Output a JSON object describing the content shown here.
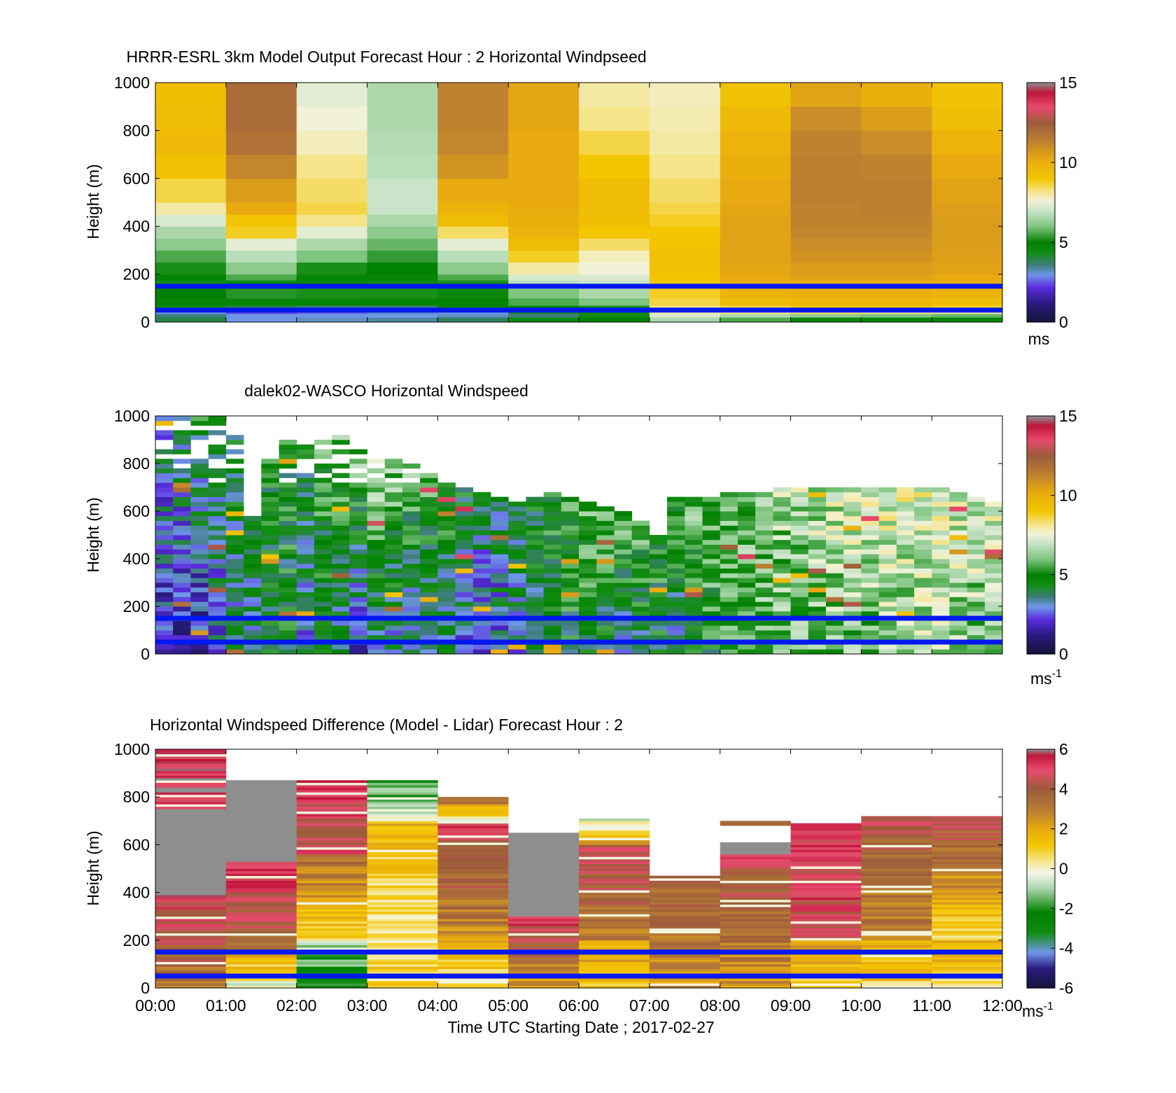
{
  "figure": {
    "xaxis_label": "Time UTC  Starting Date ; 2017-02-27",
    "time_ticks": [
      "00:00",
      "01:00",
      "02:00",
      "03:00",
      "04:00",
      "05:00",
      "06:00",
      "07:00",
      "08:00",
      "09:00",
      "10:00",
      "11:00",
      "12:00"
    ]
  },
  "colors": {
    "marker_line": "#0018f0",
    "speed_colormap": [
      [
        0,
        "#141438"
      ],
      [
        1.2,
        "#2a1a80"
      ],
      [
        2.2,
        "#5b2de0"
      ],
      [
        3.0,
        "#6f97e8"
      ],
      [
        3.6,
        "#3d7d7a"
      ],
      [
        4.4,
        "#118d11"
      ],
      [
        5.0,
        "#008000"
      ],
      [
        6.0,
        "#7fc47f"
      ],
      [
        7.0,
        "#c9e4c9"
      ],
      [
        7.6,
        "#f2f2d8"
      ],
      [
        8.2,
        "#f5e48a"
      ],
      [
        9.0,
        "#f3c600"
      ],
      [
        10.2,
        "#e8aa10"
      ],
      [
        11.5,
        "#b87b35"
      ],
      [
        12.5,
        "#9c5c3c"
      ],
      [
        13.5,
        "#e84a6c"
      ],
      [
        14.4,
        "#c0153a"
      ],
      [
        15,
        "#8e8e8e"
      ]
    ],
    "diff_colormap": [
      [
        -6,
        "#141438"
      ],
      [
        -5,
        "#2a1a80"
      ],
      [
        -4.2,
        "#6f97e8"
      ],
      [
        -3.2,
        "#118d11"
      ],
      [
        -2.2,
        "#008000"
      ],
      [
        -1,
        "#a9d5a9"
      ],
      [
        -0.2,
        "#f4f7ec"
      ],
      [
        0.4,
        "#f6e58a"
      ],
      [
        1.2,
        "#f3c600"
      ],
      [
        2,
        "#e8aa10"
      ],
      [
        3,
        "#b87b35"
      ],
      [
        4,
        "#9c5c3c"
      ],
      [
        5,
        "#e84a6c"
      ],
      [
        5.7,
        "#c0153a"
      ],
      [
        6,
        "#8e8e8e"
      ]
    ]
  },
  "chart_data": [
    {
      "type": "heatmap",
      "title": "HRRR-ESRL 3km Model Output   Forecast Hour : 2 Horizontal Windpseed",
      "xlabel": "",
      "ylabel": "Height (m)",
      "xlim": [
        0,
        12
      ],
      "ylim": [
        0,
        1000
      ],
      "yticks": [
        0,
        200,
        400,
        600,
        800,
        1000
      ],
      "colorbar": {
        "range": [
          0,
          15
        ],
        "ticks": [
          0,
          5,
          10,
          15
        ],
        "unit_label": "ms",
        "unit_exp": ""
      },
      "marker_heights_m": [
        150,
        50
      ],
      "grid": false,
      "heights_m": [
        0,
        20,
        35,
        50,
        70,
        100,
        140,
        175,
        200,
        250,
        300,
        350,
        400,
        450,
        500,
        600,
        700,
        800,
        900,
        1000
      ],
      "columns": [
        {
          "t": 0.5,
          "v": [
            4.0,
            3.6,
            3.0,
            4.5,
            4.8,
            5.0,
            4.4,
            4.9,
            5.2,
            5.6,
            6.2,
            6.6,
            7.2,
            8.0,
            8.6,
            9.2,
            9.5,
            9.4,
            9.3
          ]
        },
        {
          "t": 1.5,
          "v": [
            3.0,
            3.0,
            2.4,
            4.0,
            4.8,
            5.3,
            4.6,
            5.6,
            6.2,
            6.8,
            7.4,
            8.8,
            9.1,
            10.2,
            10.6,
            11.2,
            11.8,
            12.0,
            12.0
          ]
        },
        {
          "t": 2.5,
          "v": [
            3.2,
            3.0,
            2.6,
            3.6,
            4.8,
            5.2,
            4.6,
            4.8,
            5.2,
            6.0,
            6.6,
            7.4,
            8.2,
            8.6,
            8.4,
            8.2,
            7.8,
            7.6,
            7.4
          ]
        },
        {
          "t": 3.5,
          "v": [
            3.4,
            3.0,
            3.2,
            3.6,
            4.9,
            5.2,
            4.5,
            4.8,
            5.0,
            5.4,
            5.8,
            6.2,
            6.6,
            7.0,
            7.0,
            6.8,
            6.7,
            6.6,
            6.6
          ]
        },
        {
          "t": 4.5,
          "v": [
            3.8,
            3.2,
            3.0,
            4.8,
            4.9,
            5.1,
            5.2,
            5.6,
            6.2,
            6.8,
            7.4,
            8.4,
            9.4,
            9.8,
            10.2,
            10.8,
            11.2,
            11.3,
            11.3
          ]
        },
        {
          "t": 5.5,
          "v": [
            4.6,
            3.6,
            4.2,
            4.9,
            5.6,
            6.0,
            6.8,
            7.2,
            8.0,
            8.8,
            9.4,
            9.8,
            10.0,
            10.1,
            10.2,
            10.2,
            10.2,
            10.3,
            10.3
          ]
        },
        {
          "t": 6.5,
          "v": [
            5.0,
            4.5,
            4.4,
            5.2,
            6.0,
            6.6,
            7.0,
            7.2,
            7.6,
            7.8,
            8.4,
            9.0,
            9.3,
            9.4,
            9.4,
            9.0,
            8.6,
            8.2,
            8.0
          ]
        },
        {
          "t": 7.5,
          "v": [
            6.6,
            7.2,
            8.0,
            8.2,
            8.6,
            8.8,
            9.0,
            9.1,
            9.2,
            9.2,
            9.1,
            9.0,
            8.8,
            8.6,
            8.4,
            8.2,
            8.0,
            7.9,
            7.8
          ]
        },
        {
          "t": 8.5,
          "v": [
            5.6,
            6.6,
            8.2,
            8.6,
            9.4,
            9.8,
            10.0,
            10.2,
            10.3,
            10.4,
            10.4,
            10.4,
            10.4,
            10.3,
            10.2,
            10.0,
            9.8,
            9.5,
            9.2
          ]
        },
        {
          "t": 9.5,
          "v": [
            4.8,
            6.2,
            8.4,
            9.0,
            9.6,
            10.0,
            10.2,
            10.4,
            10.6,
            10.8,
            11.0,
            11.2,
            11.3,
            11.3,
            11.4,
            11.4,
            11.3,
            11.0,
            10.4
          ]
        },
        {
          "t": 10.5,
          "v": [
            4.8,
            6.0,
            8.2,
            9.0,
            9.6,
            10.0,
            10.2,
            10.4,
            10.6,
            10.8,
            11.0,
            11.2,
            11.3,
            11.4,
            11.4,
            11.3,
            11.0,
            10.6,
            10.0
          ]
        },
        {
          "t": 11.5,
          "v": [
            4.8,
            5.8,
            8.0,
            8.8,
            9.4,
            9.8,
            10.0,
            10.2,
            10.4,
            10.5,
            10.6,
            10.6,
            10.6,
            10.5,
            10.4,
            10.2,
            9.8,
            9.4,
            9.2
          ]
        }
      ]
    },
    {
      "type": "heatmap",
      "title": "dalek02-WASCO  Horizontal Windspeed",
      "xlabel": "",
      "ylabel": "Height (m)",
      "xlim": [
        0,
        12
      ],
      "ylim": [
        0,
        1000
      ],
      "yticks": [
        0,
        200,
        400,
        600,
        800,
        1000
      ],
      "colorbar": {
        "range": [
          0,
          15
        ],
        "ticks": [
          0,
          5,
          10,
          15
        ],
        "unit_label": "ms",
        "unit_exp": "-1"
      },
      "marker_heights_m": [
        150,
        50
      ],
      "grid": false,
      "bin_height_m": 20,
      "columns": [
        {
          "t": 0.125,
          "top": 1000,
          "v0": 2.0,
          "v1": 3.5
        },
        {
          "t": 0.375,
          "top": 1000,
          "v0": 1.4,
          "v1": 4.2
        },
        {
          "t": 0.625,
          "top": 1000,
          "v0": 1.8,
          "v1": 4.6
        },
        {
          "t": 0.875,
          "top": 1000,
          "v0": 2.6,
          "v1": 4.4
        },
        {
          "t": 1.125,
          "top": 940,
          "v0": 3.4,
          "v1": 4.6
        },
        {
          "t": 1.375,
          "top": 580,
          "v0": 3.8,
          "v1": 4.4
        },
        {
          "t": 1.625,
          "top": 820,
          "v0": 4.2,
          "v1": 4.6
        },
        {
          "t": 1.875,
          "top": 900,
          "v0": 4.4,
          "v1": 4.8
        },
        {
          "t": 2.125,
          "top": 880,
          "v0": 3.2,
          "v1": 5.0
        },
        {
          "t": 2.375,
          "top": 900,
          "v0": 4.0,
          "v1": 5.4
        },
        {
          "t": 2.625,
          "top": 940,
          "v0": 3.6,
          "v1": 6.2
        },
        {
          "t": 2.875,
          "top": 880,
          "v0": 2.4,
          "v1": 6.6
        },
        {
          "t": 3.125,
          "top": 860,
          "v0": 3.4,
          "v1": 7.6
        },
        {
          "t": 3.375,
          "top": 820,
          "v0": 3.2,
          "v1": 6.8
        },
        {
          "t": 3.625,
          "top": 800,
          "v0": 3.0,
          "v1": 6.4
        },
        {
          "t": 3.875,
          "top": 780,
          "v0": 3.6,
          "v1": 6.0
        },
        {
          "t": 4.125,
          "top": 720,
          "v0": 3.4,
          "v1": 5.6
        },
        {
          "t": 4.375,
          "top": 700,
          "v0": 2.6,
          "v1": 5.2
        },
        {
          "t": 4.625,
          "top": 680,
          "v0": 2.2,
          "v1": 5.0
        },
        {
          "t": 4.875,
          "top": 660,
          "v0": 2.6,
          "v1": 4.8
        },
        {
          "t": 5.125,
          "top": 640,
          "v0": 3.2,
          "v1": 4.8
        },
        {
          "t": 5.375,
          "top": 660,
          "v0": 3.8,
          "v1": 5.2
        },
        {
          "t": 5.625,
          "top": 680,
          "v0": 4.2,
          "v1": 5.6
        },
        {
          "t": 5.875,
          "top": 660,
          "v0": 4.4,
          "v1": 6.0
        },
        {
          "t": 6.125,
          "top": 640,
          "v0": 4.4,
          "v1": 6.4
        },
        {
          "t": 6.375,
          "top": 620,
          "v0": 4.0,
          "v1": 6.8
        },
        {
          "t": 6.625,
          "top": 600,
          "v0": 3.6,
          "v1": 7.0
        },
        {
          "t": 6.875,
          "top": 560,
          "v0": 4.0,
          "v1": 6.8
        },
        {
          "t": 7.125,
          "top": 500,
          "v0": 4.2,
          "v1": 6.4
        },
        {
          "t": 7.375,
          "top": 660,
          "v0": 3.6,
          "v1": 6.2
        },
        {
          "t": 7.625,
          "top": 660,
          "v0": 4.4,
          "v1": 6.6
        },
        {
          "t": 7.875,
          "top": 660,
          "v0": 4.8,
          "v1": 6.6
        },
        {
          "t": 8.125,
          "top": 680,
          "v0": 5.0,
          "v1": 6.6
        },
        {
          "t": 8.375,
          "top": 680,
          "v0": 5.2,
          "v1": 6.8
        },
        {
          "t": 8.625,
          "top": 680,
          "v0": 5.4,
          "v1": 7.0
        },
        {
          "t": 8.875,
          "top": 700,
          "v0": 5.6,
          "v1": 7.2
        },
        {
          "t": 9.125,
          "top": 700,
          "v0": 5.6,
          "v1": 7.2
        },
        {
          "t": 9.375,
          "top": 700,
          "v0": 5.8,
          "v1": 7.4
        },
        {
          "t": 9.625,
          "top": 700,
          "v0": 6.0,
          "v1": 7.4
        },
        {
          "t": 9.875,
          "top": 700,
          "v0": 6.0,
          "v1": 7.6
        },
        {
          "t": 10.125,
          "top": 700,
          "v0": 6.0,
          "v1": 7.6
        },
        {
          "t": 10.375,
          "top": 700,
          "v0": 6.2,
          "v1": 7.8
        },
        {
          "t": 10.625,
          "top": 700,
          "v0": 6.2,
          "v1": 7.8
        },
        {
          "t": 10.875,
          "top": 700,
          "v0": 6.4,
          "v1": 7.8
        },
        {
          "t": 11.125,
          "top": 700,
          "v0": 6.4,
          "v1": 8.0
        },
        {
          "t": 11.375,
          "top": 680,
          "v0": 6.2,
          "v1": 7.8
        },
        {
          "t": 11.625,
          "top": 660,
          "v0": 6.0,
          "v1": 7.6
        },
        {
          "t": 11.875,
          "top": 640,
          "v0": 6.0,
          "v1": 7.6
        }
      ]
    },
    {
      "type": "heatmap",
      "title": "Horizontal Windspeed Difference (Model - Lidar) Forecast Hour : 2",
      "xlabel": "Time UTC  Starting Date ; 2017-02-27",
      "ylabel": "Height (m)",
      "xlim": [
        0,
        12
      ],
      "ylim": [
        0,
        1000
      ],
      "yticks": [
        0,
        200,
        400,
        600,
        800,
        1000
      ],
      "xticks": [
        "00:00",
        "01:00",
        "02:00",
        "03:00",
        "04:00",
        "05:00",
        "06:00",
        "07:00",
        "08:00",
        "09:00",
        "10:00",
        "11:00",
        "12:00"
      ],
      "colorbar": {
        "range": [
          -6,
          6
        ],
        "ticks": [
          -6,
          -4,
          -2,
          0,
          2,
          4,
          6
        ],
        "unit_label": "ms",
        "unit_exp": "-1"
      },
      "marker_heights_m": [
        150,
        50
      ],
      "grid": false,
      "blocks": [
        {
          "t0": 0,
          "t1": 1,
          "y0": 0,
          "y1": 390,
          "v0": 3.0,
          "v1": 5.2
        },
        {
          "t0": 0,
          "t1": 1,
          "y0": 390,
          "y1": 750,
          "v": 6.0
        },
        {
          "t0": 0,
          "t1": 1,
          "y0": 750,
          "y1": 1000,
          "v0": 5.6,
          "v1": 5.2
        },
        {
          "t0": 1,
          "t1": 2,
          "y0": 0,
          "y1": 150,
          "v0": -0.5,
          "v1": 2.6
        },
        {
          "t0": 1,
          "t1": 2,
          "y0": 150,
          "y1": 530,
          "v0": 3.6,
          "v1": 5.4
        },
        {
          "t0": 1,
          "t1": 2,
          "y0": 530,
          "y1": 870,
          "v": 6.0
        },
        {
          "t0": 2,
          "t1": 3,
          "y0": 0,
          "y1": 200,
          "v0": -2.2,
          "v1": -1.0
        },
        {
          "t0": 2,
          "t1": 3,
          "y0": 200,
          "y1": 560,
          "v0": 1.0,
          "v1": 3.6
        },
        {
          "t0": 2,
          "t1": 3,
          "y0": 560,
          "y1": 870,
          "v0": 4.6,
          "v1": 5.2
        },
        {
          "t0": 3,
          "t1": 4,
          "y0": 0,
          "y1": 200,
          "v0": 1.2,
          "v1": 0.6
        },
        {
          "t0": 3,
          "t1": 4,
          "y0": 200,
          "y1": 700,
          "v0": 0.2,
          "v1": 1.6
        },
        {
          "t0": 3,
          "t1": 4,
          "y0": 700,
          "y1": 870,
          "v0": -0.4,
          "v1": -2.0
        },
        {
          "t0": 4,
          "t1": 5,
          "y0": 0,
          "y1": 200,
          "v0": 0.4,
          "v1": 2.0
        },
        {
          "t0": 4,
          "t1": 5,
          "y0": 200,
          "y1": 700,
          "v0": 2.6,
          "v1": 5.0
        },
        {
          "t0": 4,
          "t1": 5,
          "y0": 700,
          "y1": 800,
          "v0": 0.2,
          "v1": 4.0
        },
        {
          "t0": 5,
          "t1": 6,
          "y0": 0,
          "y1": 300,
          "v0": 2.2,
          "v1": 5.4
        },
        {
          "t0": 5,
          "t1": 6,
          "y0": 300,
          "y1": 650,
          "v": 6.0
        },
        {
          "t0": 6,
          "t1": 7,
          "y0": 0,
          "y1": 200,
          "v0": 1.4,
          "v1": 2.0
        },
        {
          "t0": 6,
          "t1": 7,
          "y0": 200,
          "y1": 600,
          "v0": 3.0,
          "v1": 4.8
        },
        {
          "t0": 6,
          "t1": 7,
          "y0": 600,
          "y1": 710,
          "v0": 2.4,
          "v1": -1.0
        },
        {
          "t0": 7,
          "t1": 8,
          "y0": 0,
          "y1": 470,
          "v0": 2.6,
          "v1": 4.0
        },
        {
          "t0": 8,
          "t1": 9,
          "y0": 0,
          "y1": 560,
          "v0": 2.4,
          "v1": 4.6
        },
        {
          "t0": 8,
          "t1": 9,
          "y0": 560,
          "y1": 610,
          "v": 6.0
        },
        {
          "t0": 8,
          "t1": 9,
          "y0": 680,
          "y1": 700,
          "v": 3.6
        },
        {
          "t0": 9,
          "t1": 10,
          "y0": 0,
          "y1": 200,
          "v0": 1.2,
          "v1": 2.2
        },
        {
          "t0": 9,
          "t1": 10,
          "y0": 200,
          "y1": 690,
          "v0": 4.6,
          "v1": 5.4
        },
        {
          "t0": 10,
          "t1": 11,
          "y0": 0,
          "y1": 200,
          "v0": 1.0,
          "v1": 2.0
        },
        {
          "t0": 10,
          "t1": 11,
          "y0": 200,
          "y1": 720,
          "v0": 2.8,
          "v1": 4.4
        },
        {
          "t0": 11,
          "t1": 12,
          "y0": 0,
          "y1": 200,
          "v0": 0.6,
          "v1": 2.2
        },
        {
          "t0": 11,
          "t1": 12,
          "y0": 200,
          "y1": 720,
          "v0": 0.8,
          "v1": 4.6
        }
      ]
    }
  ]
}
